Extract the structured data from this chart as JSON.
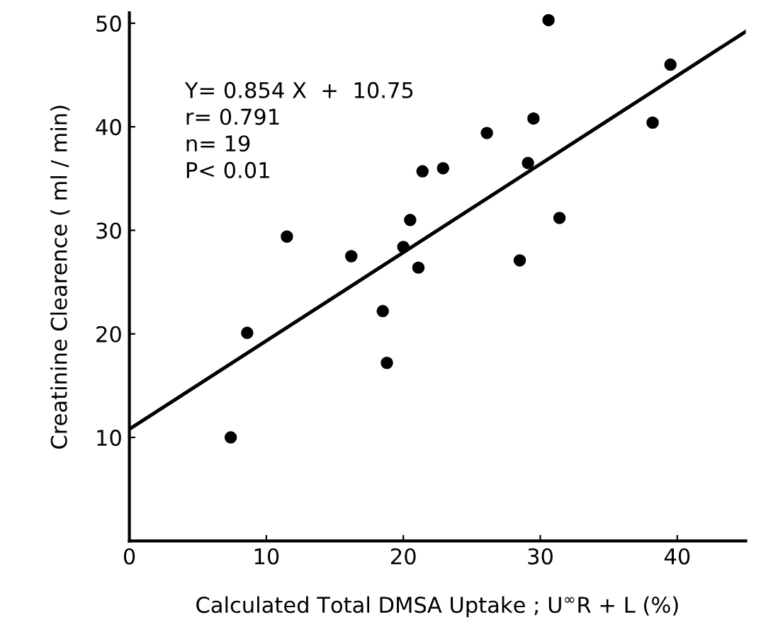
{
  "chart_data": {
    "type": "scatter",
    "xlabel": "Calculated Total DMSA Uptake ; U$^{∞}$R + L (%)",
    "ylabel": "Creatinine Clearence ( ml / min)",
    "annotations": [
      "Y= 0.854 X  +  10.75\nr= 0.791\nn= 19\nP< 0.01"
    ],
    "series": [
      {
        "color": "#000000",
        "marker": "circle",
        "x": [
          7.4,
          8.6,
          11.5,
          16.2,
          18.5,
          18.8,
          20.0,
          20.5,
          21.1,
          21.4,
          22.9,
          26.1,
          28.5,
          29.1,
          29.5,
          30.6,
          31.4,
          38.2,
          39.5
        ],
        "values": [
          10.0,
          20.1,
          29.4,
          27.5,
          22.2,
          17.2,
          28.4,
          31.0,
          26.4,
          35.7,
          36.0,
          39.4,
          27.1,
          36.5,
          40.8,
          50.3,
          31.2,
          40.4,
          46.0
        ]
      },
      {
        "type": "line",
        "color": "#000000",
        "x": [
          0,
          45
        ],
        "values": [
          10.8,
          49.2
        ]
      }
    ],
    "xlim": [
      0,
      45
    ],
    "ylim": [
      0,
      51
    ],
    "xticks": [
      0,
      10,
      20,
      30,
      40
    ],
    "yticks": [
      10,
      20,
      30,
      40,
      50
    ],
    "grid": false
  }
}
